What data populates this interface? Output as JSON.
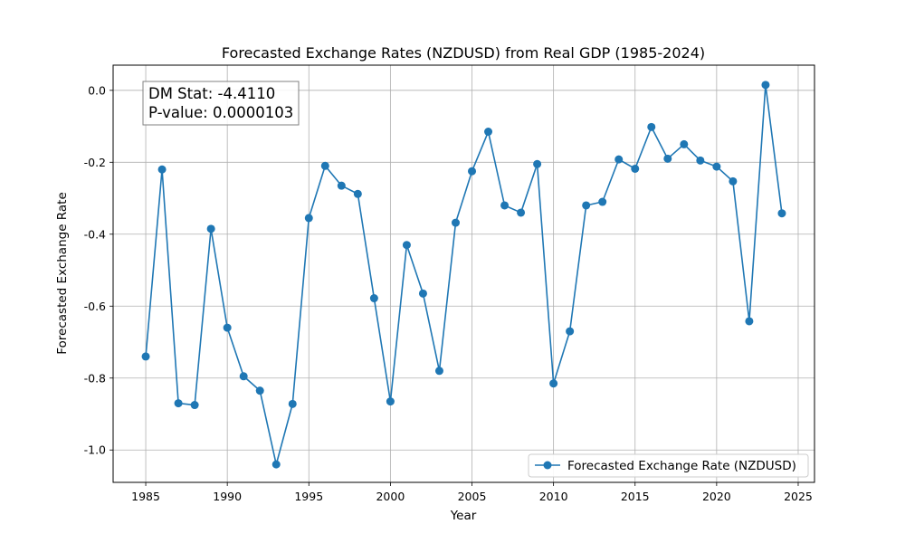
{
  "chart_data": {
    "type": "line",
    "title": "Forecasted Exchange Rates (NZDUSD) from Real GDP (1985-2024)",
    "xlabel": "Year",
    "ylabel": "Forecasted Exchange Rate",
    "xlim": [
      1983,
      2026
    ],
    "ylim": [
      -1.09,
      0.07
    ],
    "xticks": [
      1985,
      1990,
      1995,
      2000,
      2005,
      2010,
      2015,
      2020,
      2025
    ],
    "yticks": [
      0.0,
      -0.2,
      -0.4,
      -0.6,
      -0.8,
      -1.0
    ],
    "grid": true,
    "legend_position": "lower-right",
    "series_color": "#1f77b4",
    "annotation": {
      "line1": "DM Stat: -4.4110",
      "line2": "P-value: 0.0000103"
    },
    "series": [
      {
        "name": "Forecasted Exchange Rate (NZDUSD)",
        "x": [
          1985,
          1986,
          1987,
          1988,
          1989,
          1990,
          1991,
          1992,
          1993,
          1994,
          1995,
          1996,
          1997,
          1998,
          1999,
          2000,
          2001,
          2002,
          2003,
          2004,
          2005,
          2006,
          2007,
          2008,
          2009,
          2010,
          2011,
          2012,
          2013,
          2014,
          2015,
          2016,
          2017,
          2018,
          2019,
          2020,
          2021,
          2022,
          2023,
          2024
        ],
        "values": [
          -0.74,
          -0.22,
          -0.87,
          -0.875,
          -0.385,
          -0.66,
          -0.795,
          -0.835,
          -1.04,
          -0.872,
          -0.355,
          -0.21,
          -0.265,
          -0.288,
          -0.578,
          -0.865,
          -0.43,
          -0.565,
          -0.78,
          -0.368,
          -0.225,
          -0.115,
          -0.32,
          -0.34,
          -0.205,
          -0.815,
          -0.67,
          -0.32,
          -0.31,
          -0.192,
          -0.218,
          -0.102,
          -0.19,
          -0.15,
          -0.195,
          -0.212,
          -0.253,
          -0.642,
          0.015,
          -0.342
        ]
      }
    ]
  }
}
